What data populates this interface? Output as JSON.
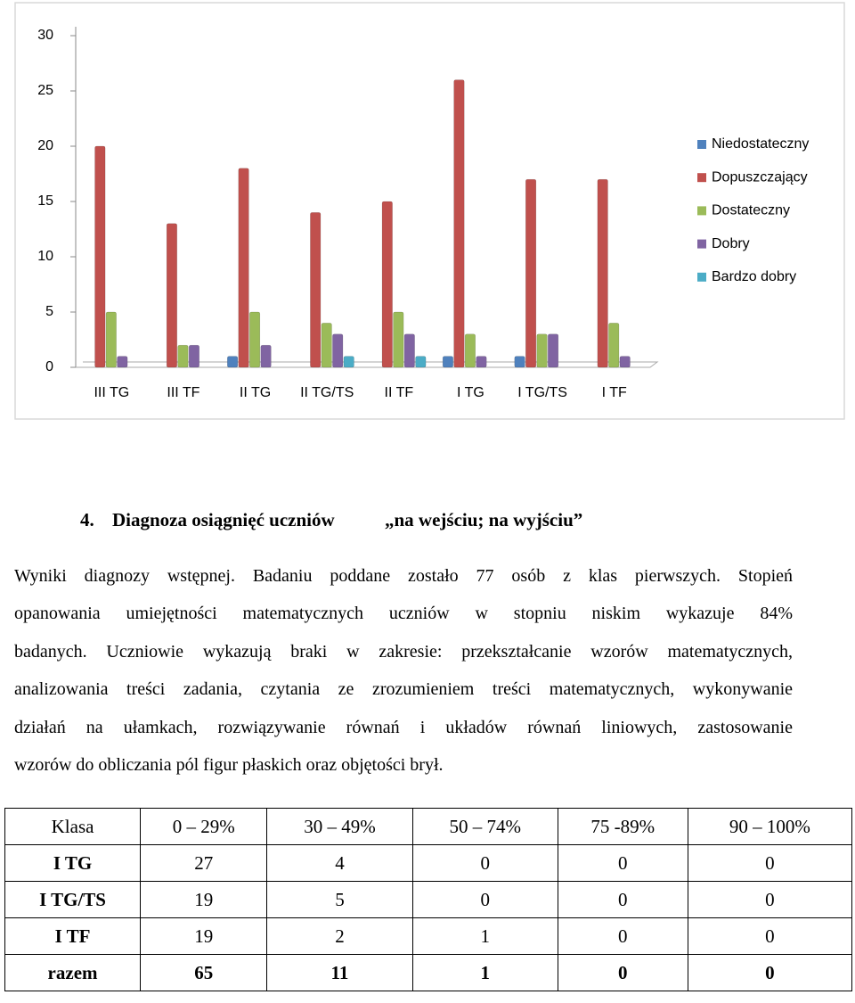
{
  "chart_data": {
    "type": "bar",
    "categories": [
      "III TG",
      "III TF",
      "II TG",
      "II TG/TS",
      "II TF",
      "I TG",
      "I TG/TS",
      "I TF"
    ],
    "series": [
      {
        "name": "Niedostateczny",
        "color": "#4f81bd",
        "values": [
          0,
          0,
          1,
          0,
          0,
          1,
          1,
          0
        ]
      },
      {
        "name": "Dopuszczający",
        "color": "#c0504d",
        "values": [
          20,
          13,
          18,
          14,
          15,
          26,
          17,
          17
        ]
      },
      {
        "name": "Dostateczny",
        "color": "#9bbb59",
        "values": [
          5,
          2,
          5,
          4,
          5,
          3,
          3,
          4
        ]
      },
      {
        "name": "Dobry",
        "color": "#8064a2",
        "values": [
          1,
          2,
          2,
          3,
          3,
          1,
          3,
          1
        ]
      },
      {
        "name": "Bardzo dobry",
        "color": "#4bacc6",
        "values": [
          0,
          0,
          0,
          1,
          1,
          0,
          0,
          0
        ]
      }
    ],
    "ylim": [
      0,
      30
    ],
    "yticks": [
      0,
      5,
      10,
      15,
      20,
      25,
      30
    ],
    "grid": false,
    "legend": "right"
  },
  "section": {
    "number": "4.",
    "title": "Diagnoza osiągnięć uczniów",
    "subtitle": "„na wejściu; na wyjściu”"
  },
  "paragraph_lines": [
    "Wyniki diagnozy wstępnej. Badaniu poddane zostało 77 osób z klas pierwszych. Stopień",
    "opanowania umiejętności matematycznych uczniów w stopniu niskim wykazuje 84%",
    "badanych. Uczniowie wykazują braki w zakresie: przekształcanie wzorów matematycznych,",
    "analizowania treści zadania, czytania ze zrozumieniem treści matematycznych, wykonywanie",
    "działań na ułamkach, rozwiązywanie równań i układów równań liniowych, zastosowanie",
    "wzorów do obliczania pól figur płaskich oraz objętości brył."
  ],
  "table": {
    "header": [
      "Klasa",
      "0 – 29%",
      "30 – 49%",
      "50 – 74%",
      "75 -89%",
      "90 – 100%"
    ],
    "rows": [
      [
        "I TG",
        27,
        4,
        0,
        0,
        0
      ],
      [
        "I TG/TS",
        19,
        5,
        0,
        0,
        0
      ],
      [
        "I TF",
        19,
        2,
        1,
        0,
        0
      ],
      [
        "razem",
        65,
        11,
        1,
        0,
        0
      ]
    ]
  }
}
